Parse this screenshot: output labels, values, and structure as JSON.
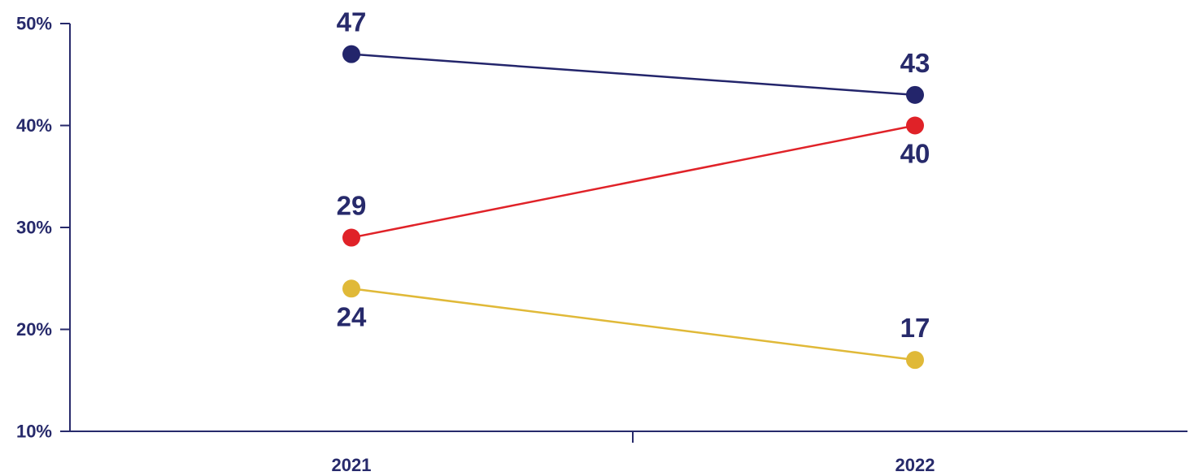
{
  "chart_data": {
    "type": "line",
    "categories": [
      "2021",
      "2022"
    ],
    "series": [
      {
        "values": [
          47,
          43
        ],
        "color": "#23256b"
      },
      {
        "values": [
          29,
          40
        ],
        "color": "#e02228"
      },
      {
        "values": [
          24,
          17
        ],
        "color": "#e0b938"
      }
    ],
    "y_ticks": [
      "10%",
      "20%",
      "30%",
      "40%",
      "50%"
    ],
    "ylim": [
      10,
      50
    ],
    "axis_color": "#272a6b",
    "grid": false,
    "legend": "none"
  }
}
